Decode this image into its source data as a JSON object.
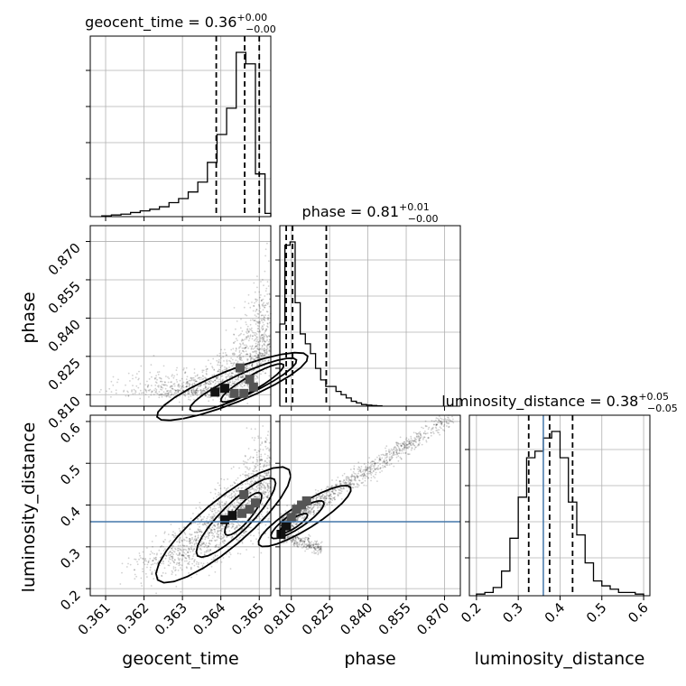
{
  "chart_data": {
    "type": "corner",
    "parameters": [
      "geocent_time",
      "phase",
      "luminosity_distance"
    ],
    "titles": {
      "geocent_time": {
        "name": "geocent_time",
        "median": "0.36",
        "plus": "+0.00",
        "minus": "−0.00"
      },
      "phase": {
        "name": "phase",
        "median": "0.81",
        "plus": "+0.01",
        "minus": "−0.00"
      },
      "luminosity_distance": {
        "name": "luminosity_distance",
        "median": "0.38",
        "plus": "+0.05",
        "minus": "−0.05"
      }
    },
    "axis_labels": {
      "x": [
        "geocent_time",
        "phase",
        "luminosity_distance"
      ],
      "y": [
        "phase",
        "luminosity_distance"
      ]
    },
    "ranges": {
      "geocent_time": [
        0.3606,
        0.3653
      ],
      "phase": [
        0.8055,
        0.8762
      ],
      "luminosity_distance": [
        0.183,
        0.615
      ]
    },
    "ticks": {
      "geocent_time": [
        "0.361",
        "0.362",
        "0.363",
        "0.364",
        "0.365"
      ],
      "phase": [
        "0.810",
        "0.825",
        "0.840",
        "0.855",
        "0.870"
      ],
      "luminosity_distance": [
        "0.2",
        "0.3",
        "0.4",
        "0.5",
        "0.6"
      ]
    },
    "tick_values": {
      "geocent_time": [
        0.361,
        0.362,
        0.363,
        0.364,
        0.365
      ],
      "phase": [
        0.81,
        0.825,
        0.84,
        0.855,
        0.87
      ],
      "luminosity_distance": [
        0.2,
        0.3,
        0.4,
        0.5,
        0.6
      ]
    },
    "quantiles": {
      "geocent_time": [
        0.36388,
        0.36462,
        0.365
      ],
      "phase": [
        0.808,
        0.8105,
        0.8237
      ],
      "luminosity_distance": [
        0.325,
        0.375,
        0.43
      ]
    },
    "truth": {
      "luminosity_distance": 0.36
    },
    "histograms": {
      "geocent_time": {
        "edges": [
          0.3609,
          0.36115,
          0.3614,
          0.36165,
          0.3619,
          0.36215,
          0.3624,
          0.36265,
          0.3629,
          0.36315,
          0.3634,
          0.36365,
          0.3639,
          0.36415,
          0.3644,
          0.36465,
          0.3649,
          0.36515,
          0.3654
        ],
        "values": [
          0.005,
          0.01,
          0.015,
          0.025,
          0.035,
          0.045,
          0.06,
          0.085,
          0.11,
          0.15,
          0.21,
          0.33,
          0.5,
          0.66,
          1.0,
          0.93,
          0.26,
          0.02
        ]
      },
      "phase": {
        "edges": [
          0.8055,
          0.8075,
          0.8095,
          0.8115,
          0.8135,
          0.8155,
          0.8175,
          0.8195,
          0.8215,
          0.8235,
          0.8255,
          0.8275,
          0.8295,
          0.8315,
          0.8335,
          0.8355,
          0.8375,
          0.8395,
          0.8415,
          0.8435,
          0.8455
        ],
        "values": [
          0.5,
          0.98,
          1.0,
          0.63,
          0.44,
          0.38,
          0.32,
          0.23,
          0.16,
          0.12,
          0.12,
          0.09,
          0.07,
          0.05,
          0.03,
          0.02,
          0.01,
          0.007,
          0.004,
          0.002
        ]
      },
      "luminosity_distance": {
        "edges": [
          0.2,
          0.22,
          0.24,
          0.26,
          0.28,
          0.3,
          0.32,
          0.34,
          0.36,
          0.38,
          0.4,
          0.42,
          0.44,
          0.46,
          0.48,
          0.5,
          0.52,
          0.54,
          0.56,
          0.58,
          0.6
        ],
        "values": [
          0.01,
          0.02,
          0.05,
          0.15,
          0.35,
          0.6,
          0.84,
          0.88,
          0.96,
          1.0,
          0.84,
          0.57,
          0.37,
          0.2,
          0.09,
          0.06,
          0.04,
          0.02,
          0.02,
          0.01
        ]
      }
    },
    "hist2d": {
      "geocent_time__phase": {
        "x": [
          0.36385,
          0.3641,
          0.36435,
          0.3646,
          0.36485,
          0.36475,
          0.3645
        ],
        "y": [
          0.811,
          0.8125,
          0.8105,
          0.8105,
          0.813,
          0.816,
          0.8205
        ]
      },
      "geocent_time__luminosity_distance": {
        "x": [
          0.3641,
          0.3643,
          0.36455,
          0.36475,
          0.3649,
          0.3646
        ],
        "y": [
          0.365,
          0.375,
          0.38,
          0.39,
          0.405,
          0.425
        ]
      },
      "phase__luminosity_distance": {
        "x": [
          0.806,
          0.808,
          0.81,
          0.812,
          0.814,
          0.816
        ],
        "y": [
          0.33,
          0.35,
          0.37,
          0.39,
          0.4,
          0.41
        ]
      }
    },
    "grid": true
  }
}
